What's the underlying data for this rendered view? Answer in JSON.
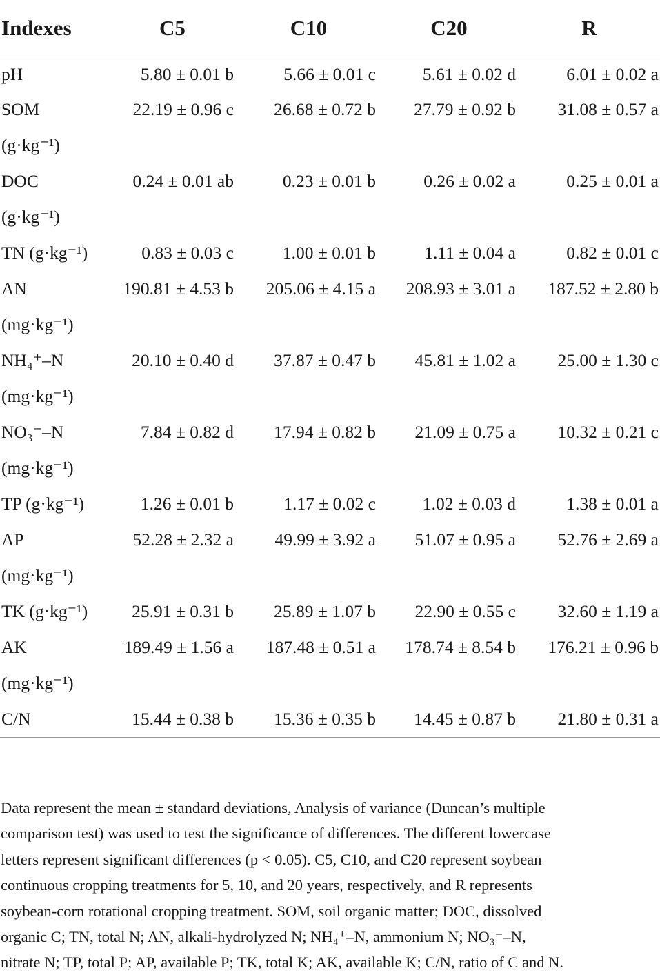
{
  "table": {
    "headers": [
      "Indexes",
      "C5",
      "C10",
      "C20",
      "R"
    ],
    "rows": [
      {
        "label": "pH",
        "unit": "",
        "values": [
          "5.80 ± 0.01 b",
          "5.66 ± 0.01 c",
          "5.61 ± 0.02 d",
          "6.01 ± 0.02 a"
        ]
      },
      {
        "label": "SOM",
        "unit": "(g·kg⁻¹)",
        "values": [
          "22.19 ± 0.96 c",
          "26.68 ± 0.72 b",
          "27.79 ± 0.92 b",
          "31.08 ± 0.57 a"
        ]
      },
      {
        "label": "DOC",
        "unit": "(g·kg⁻¹)",
        "values": [
          "0.24 ± 0.01 ab",
          "0.23 ± 0.01 b",
          "0.26 ± 0.02 a",
          "0.25 ± 0.01 a"
        ]
      },
      {
        "label": "TN (g·kg⁻¹)",
        "unit": "",
        "values": [
          "0.83 ± 0.03 c",
          "1.00 ± 0.01 b",
          "1.11 ± 0.04 a",
          "0.82 ± 0.01 c"
        ]
      },
      {
        "label": "AN",
        "unit": "(mg·kg⁻¹)",
        "values": [
          "190.81 ± 4.53 b",
          "205.06 ± 4.15 a",
          "208.93 ± 3.01 a",
          "187.52 ± 2.80 b"
        ]
      },
      {
        "label": "NH₄⁺–N",
        "unit": "(mg·kg⁻¹)",
        "values": [
          "20.10 ± 0.40 d",
          "37.87 ± 0.47 b",
          "45.81 ± 1.02 a",
          "25.00 ± 1.30 c"
        ]
      },
      {
        "label": "NO₃⁻–N",
        "unit": "(mg·kg⁻¹)",
        "values": [
          "7.84 ± 0.82 d",
          "17.94 ± 0.82 b",
          "21.09 ± 0.75 a",
          "10.32 ± 0.21 c"
        ]
      },
      {
        "label": "TP (g·kg⁻¹)",
        "unit": "",
        "values": [
          "1.26 ± 0.01 b",
          "1.17 ± 0.02 c",
          "1.02 ± 0.03 d",
          "1.38 ± 0.01 a"
        ]
      },
      {
        "label": "AP",
        "unit": "(mg·kg⁻¹)",
        "values": [
          "52.28 ± 2.32 a",
          "49.99 ± 3.92 a",
          "51.07 ± 0.95 a",
          "52.76 ± 2.69 a"
        ]
      },
      {
        "label": "TK (g·kg⁻¹)",
        "unit": "",
        "values": [
          "25.91 ± 0.31 b",
          "25.89 ± 1.07 b",
          "22.90 ± 0.55 c",
          "32.60 ± 1.19 a"
        ]
      },
      {
        "label": "AK",
        "unit": "(mg·kg⁻¹)",
        "values": [
          "189.49 ± 1.56 a",
          "187.48 ± 0.51 a",
          "178.74 ± 8.54 b",
          "176.21 ± 0.96 b"
        ]
      },
      {
        "label": "C/N",
        "unit": "",
        "values": [
          "15.44 ± 0.38 b",
          "15.36 ± 0.35 b",
          "14.45 ± 0.87 b",
          "21.80 ± 0.31 a"
        ]
      }
    ]
  },
  "footnote": {
    "lines": [
      "Data represent the mean ± standard deviations, Analysis of variance (Duncan’s multiple",
      "comparison test) was used to test the significance of differences. The different lowercase",
      "letters represent significant differences (p < 0.05). C5, C10, and C20 represent soybean",
      "continuous cropping treatments for 5, 10, and 20 years, respectively, and R represents",
      "soybean-corn rotational cropping treatment. SOM, soil organic matter; DOC, dissolved",
      "organic C; TN, total N; AN, alkali-hydrolyzed N; NH₄⁺–N, ammonium N; NO₃⁻–N,",
      "nitrate N; TP, total P; AP, available P; TK, total K; AK, available K; C/N, ratio of C and N."
    ]
  }
}
